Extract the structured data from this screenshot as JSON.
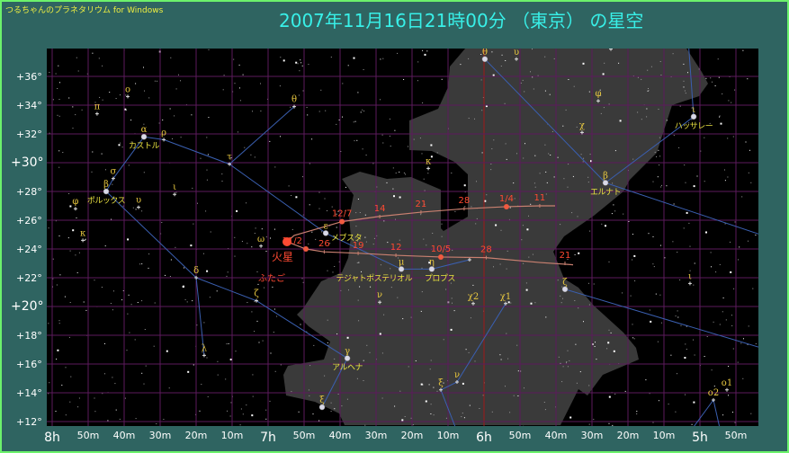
{
  "app_name": "つるちゃんのプラネタリウム for Windows",
  "title": "2007年11月16日21時00分 （東京） の星空",
  "colors": {
    "background": "#2f6461",
    "sky": "#000000",
    "milky_way": "#3a3a3a",
    "grid": "#5c1a5c",
    "meridian": "#a01818",
    "constellation_line": "#3a5fb0",
    "star_label": "#e8c840",
    "planet": "#ff4a32",
    "path": "#c98070"
  },
  "axes": {
    "dec_labels": [
      "+36°",
      "+34°",
      "+32°",
      "+30°",
      "+28°",
      "+26°",
      "+24°",
      "+22°",
      "+20°",
      "+18°",
      "+16°",
      "+14°",
      "+12°"
    ],
    "ra_labels": [
      "8h",
      "50m",
      "40m",
      "30m",
      "20m",
      "10m",
      "7h",
      "50m",
      "40m",
      "30m",
      "20m",
      "10m",
      "6h",
      "50m",
      "40m",
      "30m",
      "20m",
      "10m",
      "5h",
      "50m"
    ],
    "ra_range_h": [
      8.0,
      4.75
    ],
    "dec_range": [
      11.5,
      38
    ]
  },
  "constellation_name": "ふたご",
  "planet": {
    "name": "火星",
    "ra_h": 6.9125,
    "dec": 24.5
  },
  "mars_path": {
    "before": [
      [
        5.5875,
        22.9
      ],
      [
        5.7417,
        23.06
      ],
      [
        5.9917,
        23.4
      ],
      [
        6.2,
        23.44
      ],
      [
        6.4083,
        23.56
      ],
      [
        6.575,
        23.7
      ],
      [
        6.7417,
        23.8
      ],
      [
        6.825,
        24.0
      ],
      [
        6.9125,
        24.5
      ]
    ],
    "after": [
      [
        6.9125,
        24.5
      ],
      [
        6.8792,
        24.94
      ],
      [
        6.7958,
        25.3
      ],
      [
        6.6583,
        25.9
      ],
      [
        6.4917,
        26.25
      ],
      [
        6.2917,
        26.56
      ],
      [
        6.0875,
        26.8
      ],
      [
        5.8958,
        26.94
      ],
      [
        5.7417,
        27.0
      ],
      [
        5.6708,
        27.0
      ]
    ],
    "dates": [
      {
        "label": "21",
        "ra_h": 5.625,
        "dec": 23.0,
        "dot": false
      },
      {
        "label": "28",
        "ra_h": 5.99,
        "dec": 23.4,
        "dot": false
      },
      {
        "label": "10/5",
        "ra_h": 6.2,
        "dec": 23.44,
        "dot": true
      },
      {
        "label": "12",
        "ra_h": 6.408,
        "dec": 23.56,
        "dot": false
      },
      {
        "label": "19",
        "ra_h": 6.583,
        "dec": 23.7,
        "dot": false
      },
      {
        "label": "26",
        "ra_h": 6.74,
        "dec": 23.8,
        "dot": false
      },
      {
        "label": "11/2",
        "ra_h": 6.825,
        "dec": 24.0,
        "dot": true
      },
      {
        "label": "12/7",
        "ra_h": 6.658,
        "dec": 25.9,
        "dot": true
      },
      {
        "label": "14",
        "ra_h": 6.483,
        "dec": 26.25,
        "dot": false
      },
      {
        "label": "21",
        "ra_h": 6.292,
        "dec": 26.56,
        "dot": false
      },
      {
        "label": "28",
        "ra_h": 6.092,
        "dec": 26.8,
        "dot": false
      },
      {
        "label": "1/4",
        "ra_h": 5.896,
        "dec": 26.94,
        "dot": true
      },
      {
        "label": "11",
        "ra_h": 5.742,
        "dec": 27.0,
        "dot": false
      }
    ]
  },
  "stars": [
    {
      "id": "alpha-gem",
      "ra_h": 7.575,
      "dec": 31.8,
      "bright": true,
      "greek": "α",
      "name": "カストル"
    },
    {
      "id": "beta-gem",
      "ra_h": 7.75,
      "dec": 28.0,
      "bright": true,
      "greek": "β",
      "name": "ポルックス"
    },
    {
      "id": "sigma-gem",
      "ra_h": 7.717,
      "dec": 28.9,
      "greek": "σ"
    },
    {
      "id": "rho-gem",
      "ra_h": 7.483,
      "dec": 31.6,
      "greek": "ρ"
    },
    {
      "id": "omicron-gem",
      "ra_h": 7.65,
      "dec": 34.6,
      "greek": "ο"
    },
    {
      "id": "pi-gem",
      "ra_h": 7.792,
      "dec": 33.4,
      "greek": "π"
    },
    {
      "id": "phi-gem",
      "ra_h": 7.892,
      "dec": 26.8,
      "greek": "φ"
    },
    {
      "id": "upsilon-gem",
      "ra_h": 7.6,
      "dec": 26.9,
      "greek": "υ"
    },
    {
      "id": "iota-gem",
      "ra_h": 7.433,
      "dec": 27.8,
      "greek": "ι"
    },
    {
      "id": "kappa-gem",
      "ra_h": 7.858,
      "dec": 24.6,
      "greek": "κ"
    },
    {
      "id": "tau-gem",
      "ra_h": 7.179,
      "dec": 29.9,
      "greek": "τ"
    },
    {
      "id": "theta-gem",
      "ra_h": 6.879,
      "dec": 33.9,
      "greek": "θ"
    },
    {
      "id": "epsilon-gem",
      "ra_h": 6.733,
      "dec": 25.1,
      "bright": true,
      "greek": "ε",
      "name": "メブスタ"
    },
    {
      "id": "delta-gem",
      "ra_h": 7.333,
      "dec": 22.0,
      "greek": "δ"
    },
    {
      "id": "lambda-gem",
      "ra_h": 7.296,
      "dec": 16.6,
      "greek": "λ"
    },
    {
      "id": "zeta-gem",
      "ra_h": 7.054,
      "dec": 20.4,
      "greek": "ζ"
    },
    {
      "id": "omega-gem",
      "ra_h": 7.033,
      "dec": 24.2,
      "greek": "ω"
    },
    {
      "id": "mu-gem",
      "ra_h": 6.383,
      "dec": 22.6,
      "bright": true,
      "greek": "μ",
      "name": "テジャトポステリオル"
    },
    {
      "id": "eta-gem",
      "ra_h": 6.242,
      "dec": 22.6,
      "bright": true,
      "greek": "η",
      "name": "プロプス"
    },
    {
      "id": "nu-gem",
      "ra_h": 6.483,
      "dec": 20.3,
      "greek": "ν"
    },
    {
      "id": "gamma-gem",
      "ra_h": 6.633,
      "dec": 16.4,
      "bright": true,
      "greek": "γ",
      "name": "アルヘナ"
    },
    {
      "id": "xi-gem",
      "ra_h": 6.75,
      "dec": 13.0,
      "bright": true,
      "greek": "ξ"
    },
    {
      "id": "1-gem",
      "ra_h": 6.067,
      "dec": 23.25
    },
    {
      "id": "chi2-ori",
      "ra_h": 6.05,
      "dec": 20.2,
      "greek": "χ2"
    },
    {
      "id": "chi1-ori",
      "ra_h": 5.9,
      "dec": 20.2,
      "greek": "χ1"
    },
    {
      "id": "nu-ori",
      "ra_h": 6.125,
      "dec": 14.75,
      "greek": "ν"
    },
    {
      "id": "xi-ori",
      "ra_h": 6.2,
      "dec": 14.2,
      "greek": "ξ"
    },
    {
      "id": "zeta-tau",
      "ra_h": 5.625,
      "dec": 21.2,
      "bright": true,
      "greek": "ζ"
    },
    {
      "id": "beta-tau",
      "ra_h": 5.4375,
      "dec": 28.6,
      "bright": true,
      "greek": "β",
      "name": "エルナト"
    },
    {
      "id": "iota-aur",
      "ra_h": 5.029,
      "dec": 33.2,
      "bright": true,
      "greek": "ι",
      "name": "ハッサレー"
    },
    {
      "id": "theta-aur",
      "ra_h": 5.996,
      "dec": 37.2,
      "bright": true,
      "greek": "θ"
    },
    {
      "id": "upsilon-aur",
      "ra_h": 5.85,
      "dec": 37.2,
      "greek": "υ"
    },
    {
      "id": "nu-aur",
      "ra_h": 5.4125,
      "dec": 37.9,
      "greek": "ν"
    },
    {
      "id": "phi-aur",
      "ra_h": 5.471,
      "dec": 34.3,
      "greek": "φ"
    },
    {
      "id": "chi-aur",
      "ra_h": 5.546,
      "dec": 32.1,
      "greek": "χ"
    },
    {
      "id": "kappa-aur",
      "ra_h": 6.258,
      "dec": 29.6,
      "greek": "κ"
    },
    {
      "id": "iota-tau",
      "ra_h": 5.046,
      "dec": 21.6,
      "greek": "ι"
    },
    {
      "id": "omicron1-ori",
      "ra_h": 4.875,
      "dec": 14.2,
      "greek": "ο1"
    },
    {
      "id": "omicron2-ori",
      "ra_h": 4.9375,
      "dec": 13.5,
      "greek": "ο2"
    }
  ],
  "lines": [
    [
      "alpha-gem",
      "rho-gem"
    ],
    [
      "rho-gem",
      "tau-gem"
    ],
    [
      "tau-gem",
      "theta-gem"
    ],
    [
      "tau-gem",
      "epsilon-gem"
    ],
    [
      "epsilon-gem",
      "mu-gem"
    ],
    [
      "mu-gem",
      "eta-gem"
    ],
    [
      "eta-gem",
      "1-gem"
    ],
    [
      "alpha-gem",
      "sigma-gem"
    ],
    [
      "sigma-gem",
      "beta-gem"
    ],
    [
      "beta-gem",
      "delta-gem"
    ],
    [
      "delta-gem",
      "lambda-gem"
    ],
    [
      "delta-gem",
      "zeta-gem"
    ],
    [
      "zeta-gem",
      "gamma-gem"
    ],
    [
      "gamma-gem",
      "xi-gem"
    ],
    [
      "theta-aur",
      "beta-tau"
    ],
    [
      "beta-tau",
      "iota-aur"
    ],
    [
      "iota-aur",
      [
        5.054,
        38.5
      ]
    ],
    [
      "beta-tau",
      [
        4.6,
        24.4
      ]
    ],
    [
      "zeta-tau",
      [
        4.6,
        16.6
      ]
    ],
    [
      "chi1-ori",
      "nu-ori"
    ],
    [
      "nu-ori",
      "xi-ori"
    ],
    [
      "xi-ori",
      [
        6.117,
        11.0
      ]
    ],
    [
      "omicron2-ori",
      [
        5.06,
        11.0
      ]
    ],
    [
      "omicron2-ori",
      [
        4.9,
        11.0
      ]
    ]
  ]
}
